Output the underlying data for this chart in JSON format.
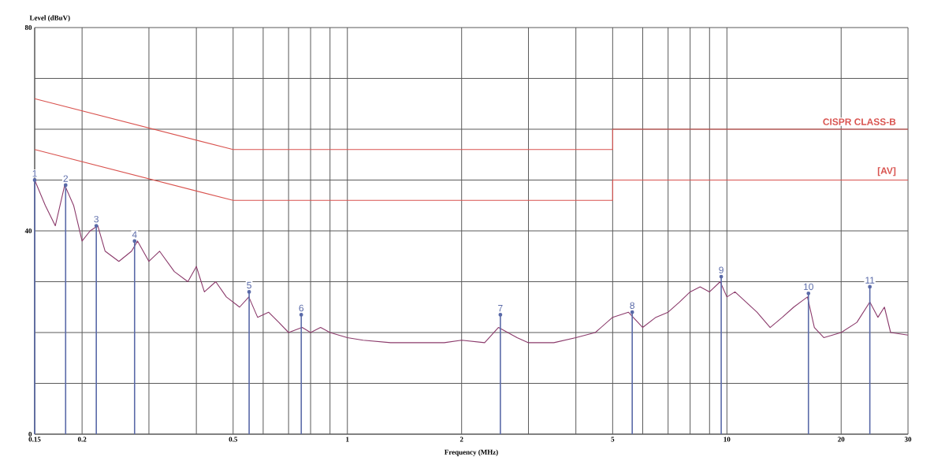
{
  "chart_data": {
    "type": "line",
    "xlabel": "Frequency (MHz)",
    "ylabel": "Level (dBuV)",
    "log": "x",
    "grid": true,
    "marker": "none",
    "xlim": [
      0.15,
      30
    ],
    "ylim": [
      0,
      80
    ],
    "xticks": [
      {
        "value": 0.15,
        "label": "0.15"
      },
      {
        "value": 0.2,
        "label": "0.2"
      },
      {
        "value": 0.3,
        "label": null
      },
      {
        "value": 0.4,
        "label": null
      },
      {
        "value": 0.5,
        "label": "0.5"
      },
      {
        "value": 0.6,
        "label": null
      },
      {
        "value": 0.7,
        "label": null
      },
      {
        "value": 0.8,
        "label": null
      },
      {
        "value": 0.9,
        "label": null
      },
      1,
      2,
      {
        "value": 3,
        "label": null
      },
      {
        "value": 4,
        "label": null
      },
      5,
      {
        "value": 6,
        "label": null
      },
      {
        "value": 7,
        "label": null
      },
      {
        "value": 8,
        "label": null
      },
      {
        "value": 9,
        "label": null
      },
      10,
      20,
      30
    ],
    "yticks": [
      0,
      {
        "value": 10,
        "label": null
      },
      {
        "value": 20,
        "label": null
      },
      {
        "value": 30,
        "label": null
      },
      40,
      {
        "value": 50,
        "label": null
      },
      {
        "value": 60,
        "label": null
      },
      {
        "value": 70,
        "label": null
      },
      80
    ],
    "series": [
      {
        "name": "CISPR CLASS-B",
        "color": "#d9534f",
        "x": [
          0.15,
          0.5,
          5,
          5,
          30
        ],
        "values": [
          66,
          56,
          56,
          60,
          60
        ]
      },
      {
        "name": "[AV]",
        "color": "#d9534f",
        "x": [
          0.15,
          0.5,
          5,
          5,
          30
        ],
        "values": [
          56,
          46,
          46,
          50,
          50
        ]
      },
      {
        "color": "#8b3a6b",
        "x": [
          0.15,
          0.16,
          0.17,
          0.18,
          0.19,
          0.2,
          0.21,
          0.22,
          0.23,
          0.25,
          0.27,
          0.28,
          0.3,
          0.32,
          0.35,
          0.38,
          0.4,
          0.42,
          0.45,
          0.48,
          0.52,
          0.55,
          0.58,
          0.62,
          0.66,
          0.7,
          0.76,
          0.8,
          0.85,
          0.9,
          1.0,
          1.1,
          1.3,
          1.5,
          1.8,
          2.0,
          2.3,
          2.5,
          2.8,
          3.0,
          3.5,
          4.0,
          4.5,
          5.0,
          5.5,
          6.0,
          6.5,
          7.0,
          7.5,
          8.0,
          8.5,
          9.0,
          9.6,
          10.0,
          10.5,
          12,
          13,
          14,
          15,
          16.3,
          17,
          18,
          20,
          22,
          23.8,
          25,
          26,
          27,
          30
        ],
        "values": [
          50,
          45,
          41,
          49,
          45,
          38,
          40,
          41,
          36,
          34,
          36,
          38,
          34,
          36,
          32,
          30,
          33,
          28,
          30,
          27,
          25,
          27,
          23,
          24,
          22,
          20,
          21,
          20,
          21,
          20,
          19,
          18.5,
          18,
          18,
          18,
          18.5,
          18,
          21,
          19,
          18,
          18,
          19,
          20,
          23,
          24,
          21,
          23,
          24,
          26,
          28,
          29,
          28,
          30,
          27,
          28,
          24,
          21,
          23,
          25,
          27,
          21,
          19,
          20,
          22,
          26,
          23,
          25,
          20,
          19.5
        ]
      },
      {
        "type": "lollipop",
        "color": "#5a6aa8",
        "x": [
          0.15,
          0.181,
          0.218,
          0.275,
          0.551,
          0.756,
          2.53,
          5.63,
          9.66,
          16.4,
          23.8
        ],
        "values": [
          50,
          49,
          41,
          38,
          28,
          23.5,
          23.5,
          24,
          31,
          27.7,
          29
        ]
      }
    ],
    "annotations": [
      {
        "text": "1",
        "x": 0.15,
        "y": 50
      },
      {
        "text": "2",
        "x": 0.181,
        "y": 49
      },
      {
        "text": "3",
        "x": 0.218,
        "y": 41
      },
      {
        "text": "4",
        "x": 0.275,
        "y": 38
      },
      {
        "text": "5",
        "x": 0.551,
        "y": 28
      },
      {
        "text": "6",
        "x": 0.756,
        "y": 23.5
      },
      {
        "text": "7",
        "x": 2.53,
        "y": 23.5
      },
      {
        "text": "8",
        "x": 5.63,
        "y": 24
      },
      {
        "text": "9",
        "x": 9.66,
        "y": 31
      },
      {
        "text": "10",
        "x": 16.4,
        "y": 27.7
      },
      {
        "text": "11",
        "x": 23.8,
        "y": 29
      }
    ]
  }
}
